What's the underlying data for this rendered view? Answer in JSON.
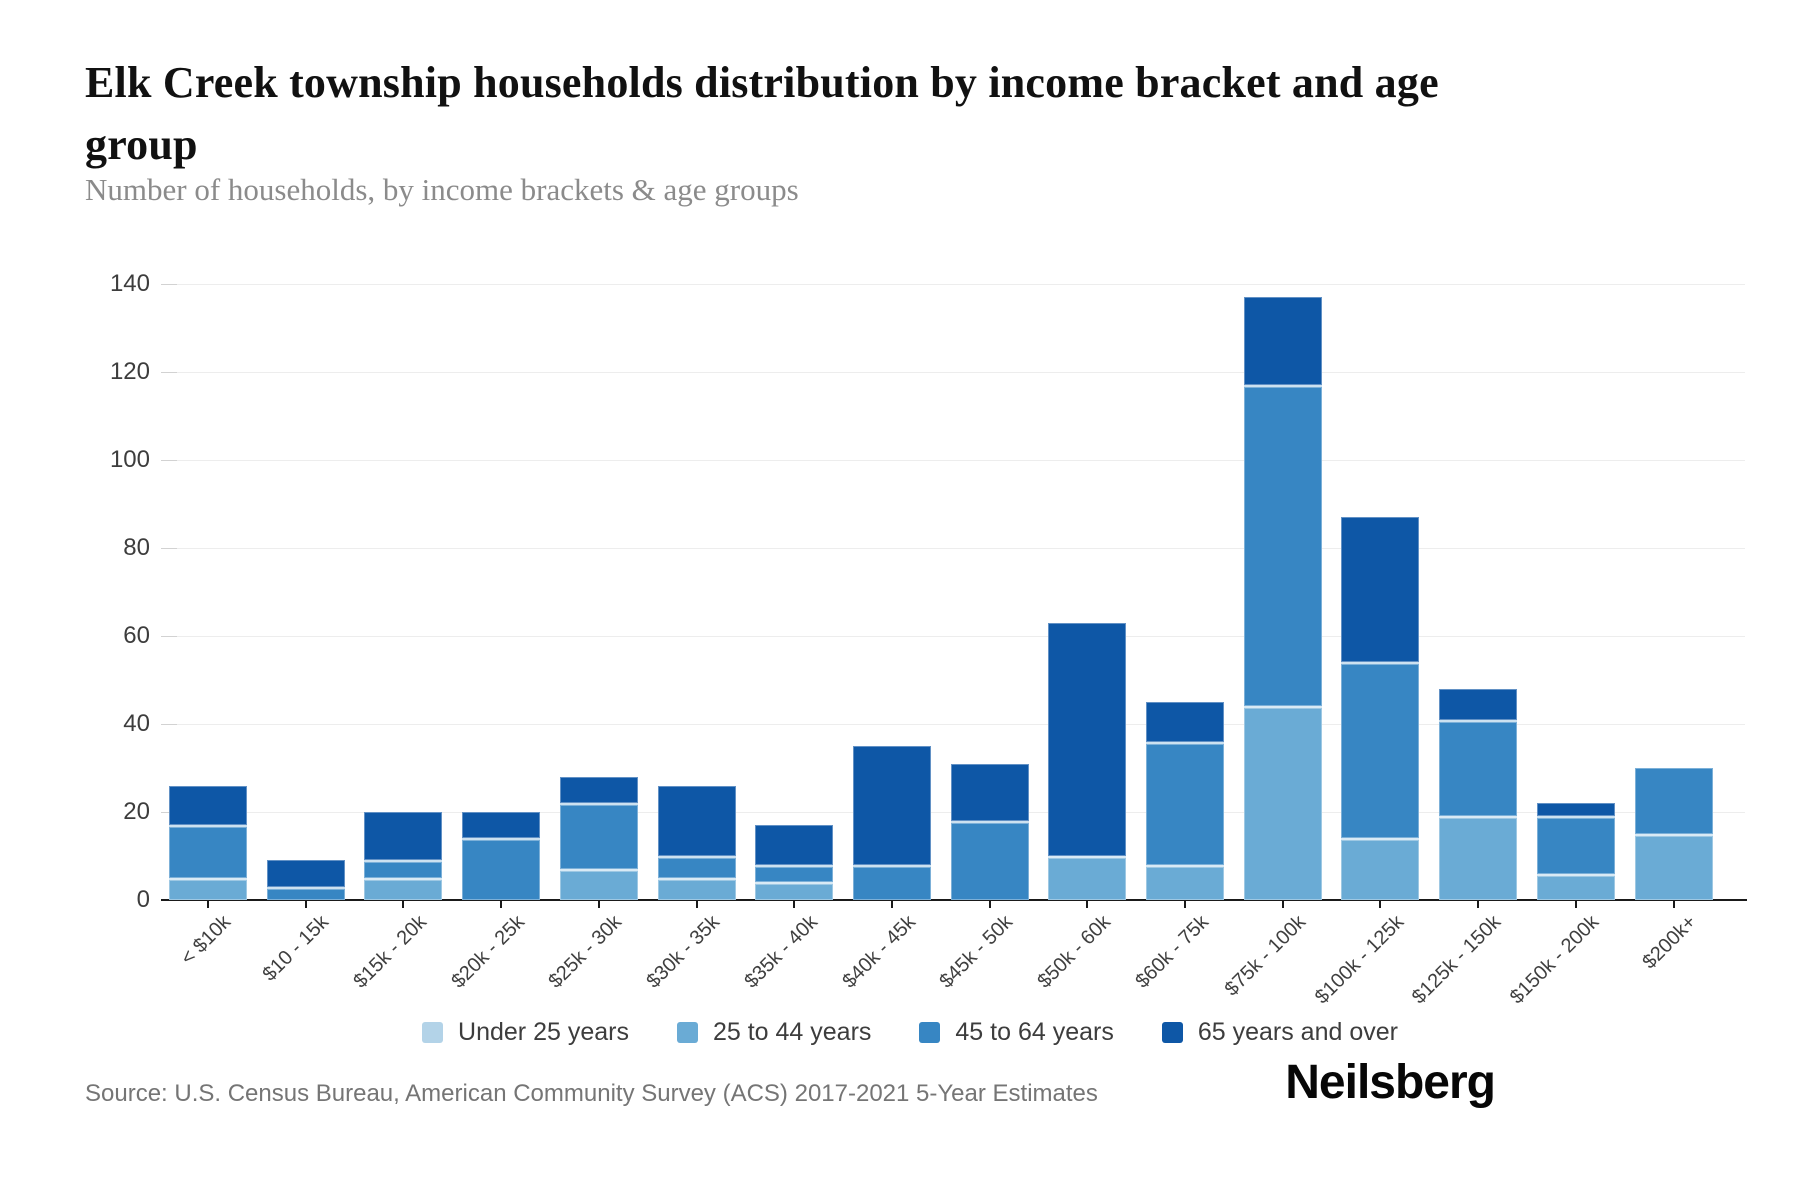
{
  "header": {
    "title": "Elk Creek township households distribution by income bracket and age group",
    "subtitle": "Number of households, by income brackets & age groups"
  },
  "footer": {
    "source": "Source: U.S. Census Bureau, American Community Survey (ACS) 2017-2021 5-Year Estimates",
    "logo": "Neilsberg"
  },
  "chart_data": {
    "type": "bar",
    "stacked": true,
    "title": "Elk Creek township households distribution by income bracket and age group",
    "xlabel": "",
    "ylabel": "Number of households",
    "ylim": [
      0,
      140
    ],
    "yticks": [
      0,
      20,
      40,
      60,
      80,
      100,
      120,
      140
    ],
    "grid": true,
    "legend_position": "bottom",
    "categories": [
      "< $10k",
      "$10 - 15k",
      "$15k - 20k",
      "$20k - 25k",
      "$25k - 30k",
      "$30k - 35k",
      "$35k - 40k",
      "$40k - 45k",
      "$45k - 50k",
      "$50k - 60k",
      "$60k - 75k",
      "$75k - 100k",
      "$100k - 125k",
      "$125k - 150k",
      "$150k - 200k",
      "$200k+"
    ],
    "series": [
      {
        "name": "Under 25 years",
        "color": "#b3d3e8",
        "values": [
          0,
          0,
          0,
          0,
          0,
          0,
          0,
          0,
          0,
          0,
          0,
          0,
          0,
          0,
          0,
          0
        ]
      },
      {
        "name": "25 to 44 years",
        "color": "#6aabd5",
        "values": [
          5,
          0,
          5,
          0,
          7,
          5,
          4,
          0,
          0,
          10,
          8,
          44,
          14,
          19,
          6,
          15
        ]
      },
      {
        "name": "45 to 64 years",
        "color": "#3786c3",
        "values": [
          12,
          3,
          4,
          14,
          15,
          5,
          4,
          8,
          18,
          0,
          28,
          73,
          40,
          22,
          13,
          15
        ]
      },
      {
        "name": "65 years and over",
        "color": "#0e57a6",
        "values": [
          9,
          6,
          11,
          6,
          6,
          16,
          9,
          27,
          13,
          53,
          9,
          20,
          33,
          7,
          3,
          0
        ]
      }
    ],
    "totals": [
      26,
      9,
      20,
      20,
      28,
      26,
      17,
      35,
      31,
      63,
      45,
      137,
      87,
      48,
      22,
      30
    ]
  }
}
